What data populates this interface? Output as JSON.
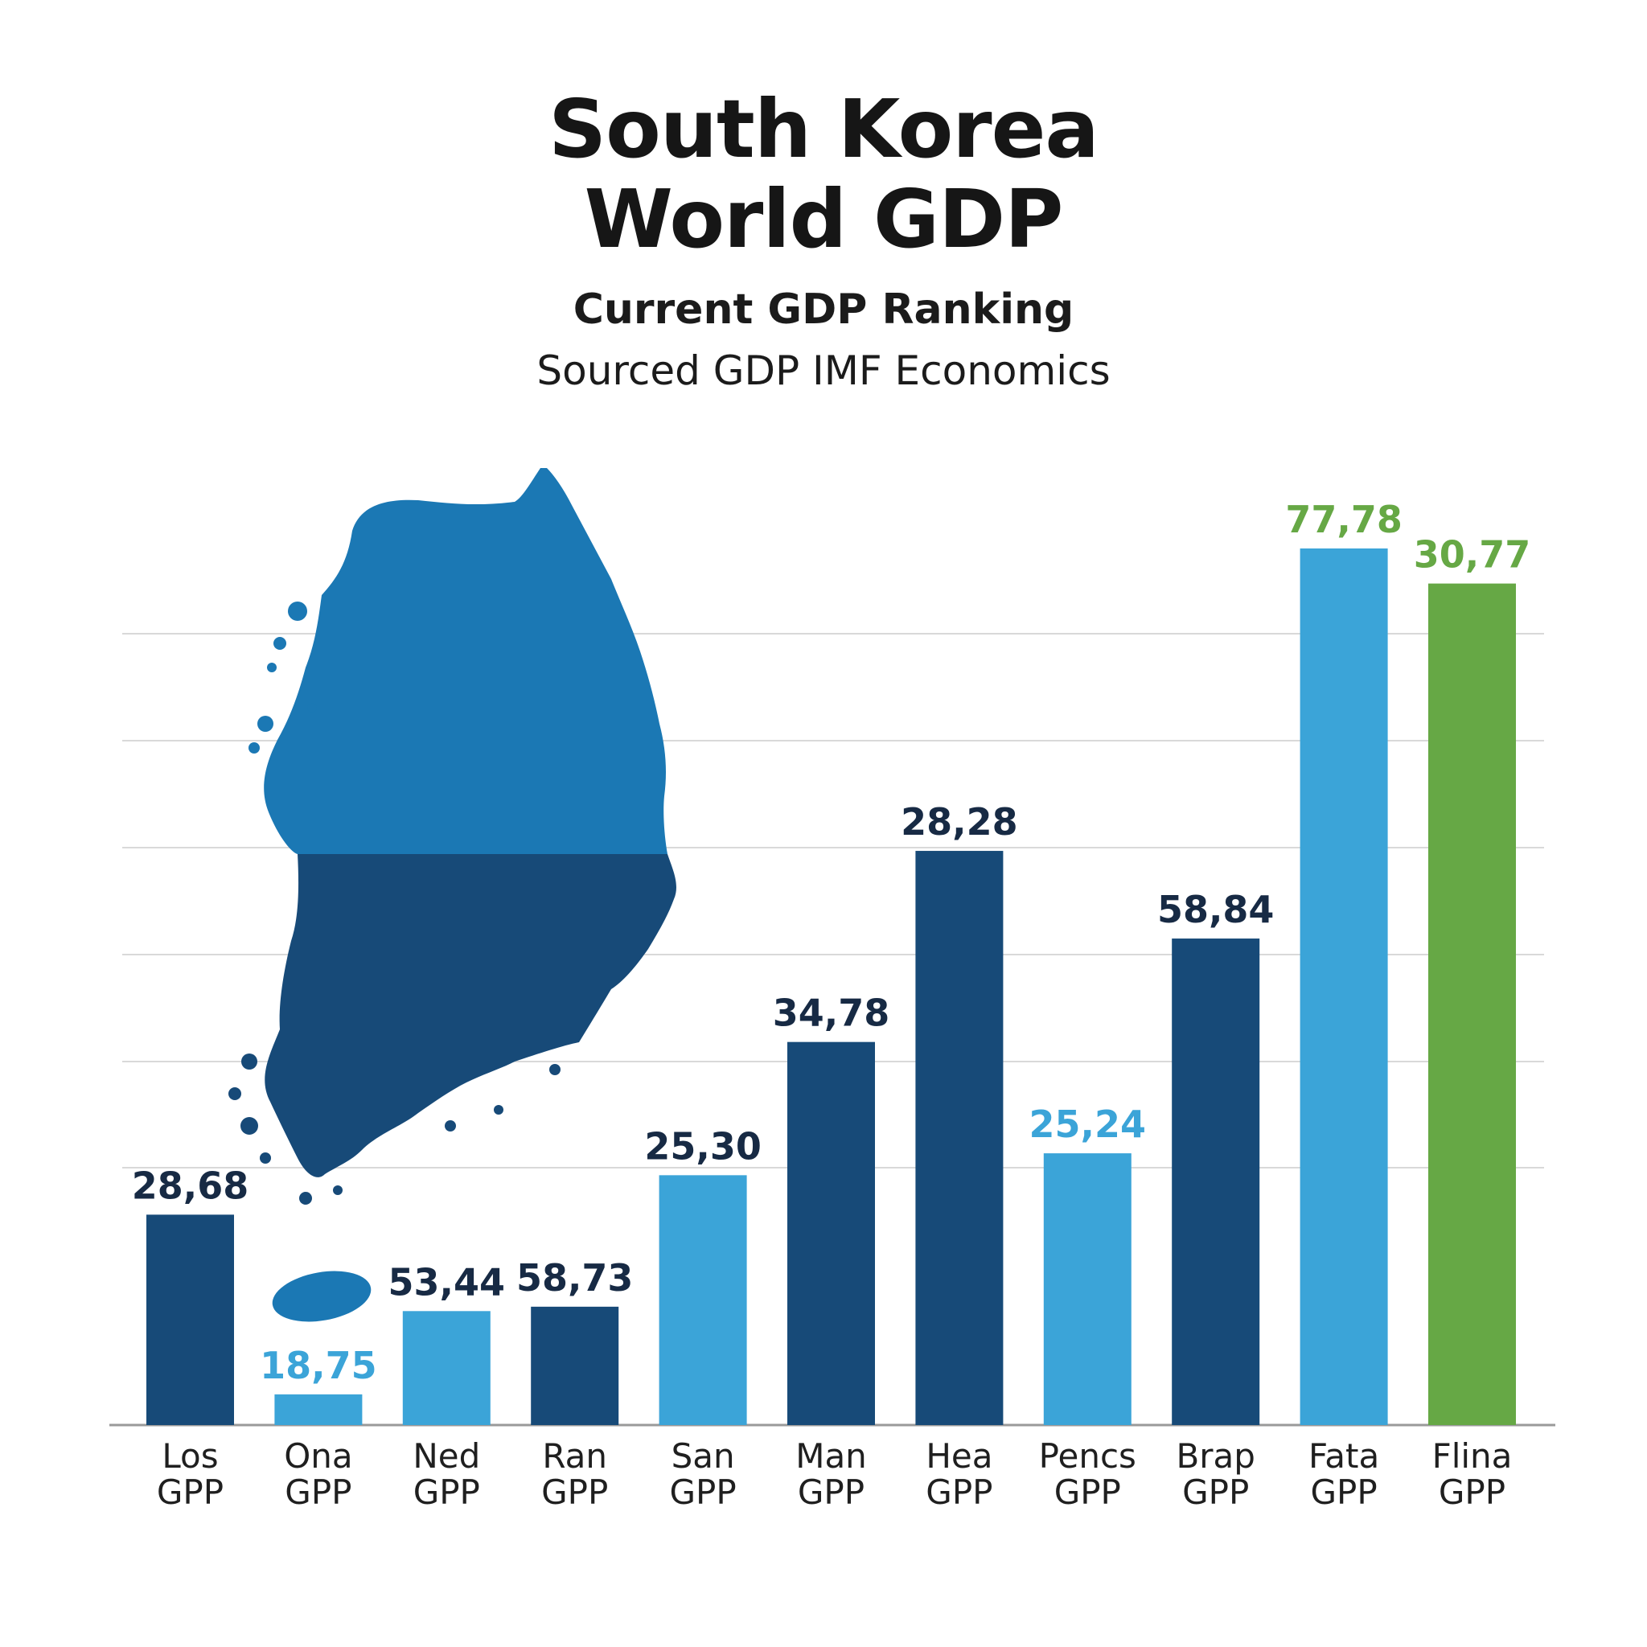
{
  "header": {
    "title_line1": "South Korea",
    "title_line2": "World GDP",
    "subtitle": "Current GDP Ranking",
    "source": "Sourced GDP IMF Economics"
  },
  "colors": {
    "dark_blue": "#174a78",
    "light_blue": "#3ba4d8",
    "green": "#66a845",
    "map_north": "#1b78b4",
    "map_south": "#174a78",
    "grid": "#d9d9d9",
    "axis": "#9a9a9a",
    "label_dark": "#172a44"
  },
  "chart_data": {
    "type": "bar",
    "categories": [
      [
        "Los",
        "GPP"
      ],
      [
        "Ona",
        "GPP"
      ],
      [
        "Ned",
        "GPP"
      ],
      [
        "Ran",
        "GPP"
      ],
      [
        "San",
        "GPP"
      ],
      [
        "Man",
        "GPP"
      ],
      [
        "Hea",
        "GPP"
      ],
      [
        "Pencs",
        "GPP"
      ],
      [
        "Brap",
        "GPP"
      ],
      [
        "Fata",
        "GPP"
      ],
      [
        "Flina",
        "GPP"
      ]
    ],
    "values": [
      28.68,
      18.75,
      53.44,
      58.73,
      25.3,
      34.78,
      28.28,
      25.24,
      58.84,
      77.78,
      30.77
    ],
    "value_labels": [
      "28,68",
      "18,75",
      "53,44",
      "58,73",
      "25,30",
      "34,78",
      "28,28",
      "25,24",
      "58,84",
      "77,78",
      "30,77"
    ],
    "bar_levels": [
      0.24,
      0.035,
      0.13,
      0.135,
      0.285,
      0.437,
      0.655,
      0.31,
      0.555,
      1.0,
      0.96
    ],
    "bar_colors": [
      "dark_blue",
      "light_blue",
      "light_blue",
      "dark_blue",
      "light_blue",
      "dark_blue",
      "dark_blue",
      "light_blue",
      "dark_blue",
      "light_blue",
      "green"
    ],
    "label_colors": [
      "label_dark",
      "light_blue",
      "label_dark",
      "label_dark",
      "label_dark",
      "label_dark",
      "label_dark",
      "light_blue",
      "label_dark",
      "green",
      "green"
    ],
    "title": "South Korea World GDP",
    "xlabel": "",
    "ylabel": "",
    "grid": true,
    "legend": "none"
  }
}
